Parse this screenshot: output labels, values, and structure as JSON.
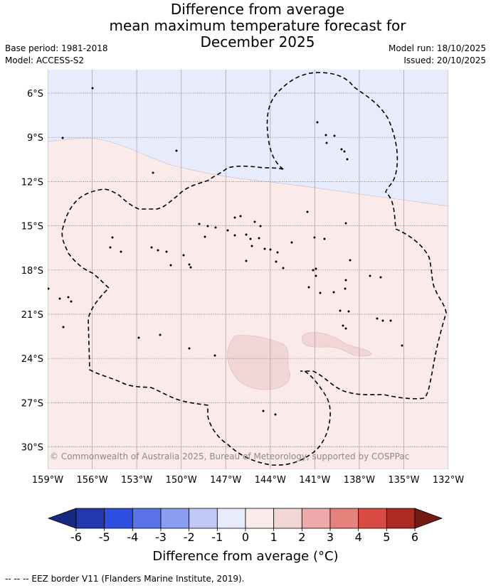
{
  "title_lines": [
    "Difference from average",
    "mean maximum temperature forecast for",
    "December 2025"
  ],
  "meta": {
    "base_period": "Base period: 1981-2018",
    "model": "Model: ACCESS-S2",
    "model_run": "Model run: 18/10/2025",
    "issued": "Issued: 20/10/2025"
  },
  "map": {
    "lat_labels": [
      "6°S",
      "9°S",
      "12°S",
      "15°S",
      "18°S",
      "21°S",
      "24°S",
      "27°S",
      "30°S"
    ],
    "lon_labels": [
      "159°W",
      "156°W",
      "153°W",
      "150°W",
      "147°W",
      "144°W",
      "141°W",
      "138°W",
      "135°W",
      "132°W"
    ],
    "lat_values": [
      -6,
      -9,
      -12,
      -15,
      -18,
      -21,
      -24,
      -27,
      -30
    ],
    "lon_values": [
      -159,
      -156,
      -153,
      -150,
      -147,
      -144,
      -141,
      -138,
      -135,
      -132
    ],
    "copyright": "© Commonwealth of Australia 2025, Bureau of Meteorology, supported by COSPPac",
    "region_colors": {
      "minus_1_to_0": "#e8ebfb",
      "zero_to_1": "#fbeaea",
      "one_to_2": "#f2d6d6"
    }
  },
  "colorbar": {
    "ticks": [
      "-6",
      "-5",
      "-4",
      "-3",
      "-2",
      "-1",
      "0",
      "1",
      "2",
      "3",
      "4",
      "5",
      "6"
    ],
    "colors": [
      "#2239ad",
      "#2f4fe0",
      "#5a73e6",
      "#8a9ced",
      "#c1c8f5",
      "#e8ebfb",
      "#fbeaea",
      "#f2d6d6",
      "#eeaaaa",
      "#e6827c",
      "#d94a42",
      "#ab2a22"
    ],
    "under_color": "#172880",
    "over_color": "#731a17",
    "label": "Difference from average (°C)"
  },
  "legend_note": "--  --  -- EEZ border V11 (Flanders Marine Institute, 2019)."
}
